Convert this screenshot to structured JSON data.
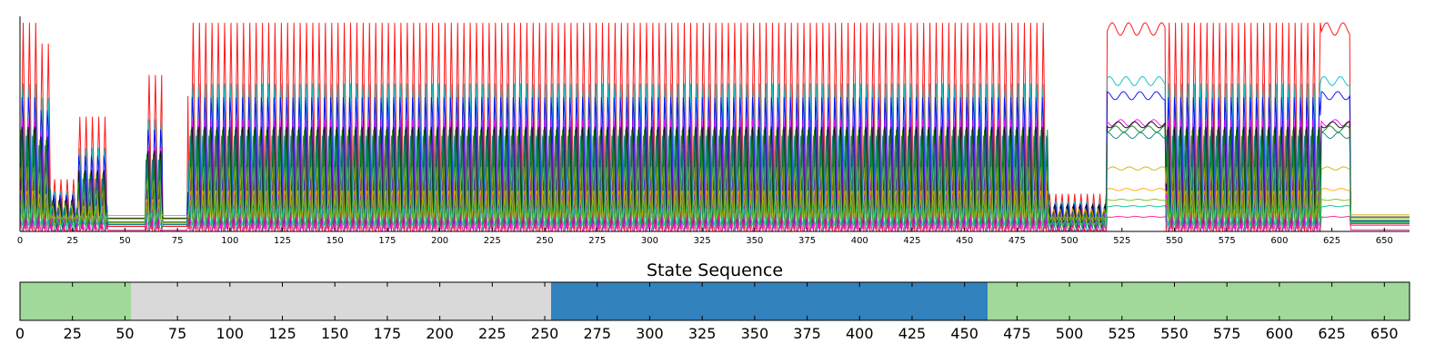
{
  "chart_data": [
    {
      "type": "line",
      "title": "",
      "xlabel": "",
      "ylabel": "",
      "xlim": [
        0,
        662
      ],
      "xticks": [
        0,
        25,
        50,
        75,
        100,
        125,
        150,
        175,
        200,
        225,
        250,
        275,
        300,
        325,
        350,
        375,
        400,
        425,
        450,
        475,
        500,
        525,
        550,
        575,
        600,
        625,
        650
      ],
      "ylim": [
        0,
        1
      ],
      "grid": false,
      "legend": "none",
      "series_colors": [
        "#ff0000",
        "#00bfbf",
        "#0000ff",
        "#ff00ff",
        "#000000",
        "#008000",
        "#c7b400",
        "#ffa500",
        "#008080",
        "#7fbf00",
        "#ff1493",
        "#00c08a"
      ],
      "series": [
        {
          "color": "#ff0000",
          "peak": 0.97,
          "base": 0.0
        },
        {
          "color": "#00bfbf",
          "peak": 0.72,
          "base": 0.02
        },
        {
          "color": "#0000ff",
          "peak": 0.65,
          "base": 0.02
        },
        {
          "color": "#ff00ff",
          "peak": 0.52,
          "base": 0.01
        },
        {
          "color": "#000000",
          "peak": 0.51,
          "base": 0.04
        },
        {
          "color": "#008000",
          "peak": 0.49,
          "base": 0.02
        },
        {
          "color": "#c7b400",
          "peak": 0.3,
          "base": 0.06
        },
        {
          "color": "#ffa500",
          "peak": 0.2,
          "base": 0.03
        },
        {
          "color": "#008080",
          "peak": 0.46,
          "base": 0.0
        },
        {
          "color": "#7fbf00",
          "peak": 0.15,
          "base": 0.05
        },
        {
          "color": "#ff1493",
          "peak": 0.07,
          "base": 0.0
        },
        {
          "color": "#00c08a",
          "peak": 0.12,
          "base": 0.03
        }
      ],
      "envelope": [
        {
          "x0": 0,
          "x1": 9,
          "level": 1.0,
          "mode": "spike"
        },
        {
          "x0": 9,
          "x1": 15,
          "level": 0.9,
          "mode": "spike"
        },
        {
          "x0": 15,
          "x1": 28,
          "level": 0.25,
          "mode": "spike"
        },
        {
          "x0": 28,
          "x1": 42,
          "level": 0.55,
          "mode": "spike"
        },
        {
          "x0": 42,
          "x1": 60,
          "level": 0.08,
          "mode": "flat"
        },
        {
          "x0": 60,
          "x1": 68,
          "level": 0.75,
          "mode": "spike"
        },
        {
          "x0": 68,
          "x1": 80,
          "level": 0.08,
          "mode": "flat"
        },
        {
          "x0": 80,
          "x1": 490,
          "level": 1.0,
          "mode": "spike"
        },
        {
          "x0": 490,
          "x1": 518,
          "level": 0.18,
          "mode": "spike"
        },
        {
          "x0": 518,
          "x1": 546,
          "level": 1.0,
          "mode": "plateau"
        },
        {
          "x0": 546,
          "x1": 620,
          "level": 1.0,
          "mode": "spike"
        },
        {
          "x0": 620,
          "x1": 634,
          "level": 1.0,
          "mode": "plateau"
        },
        {
          "x0": 634,
          "x1": 662,
          "level": 0.1,
          "mode": "flat"
        }
      ]
    },
    {
      "type": "bar",
      "title": "State Sequence",
      "xlim": [
        0,
        662
      ],
      "xticks": [
        0,
        25,
        50,
        75,
        100,
        125,
        150,
        175,
        200,
        225,
        250,
        275,
        300,
        325,
        350,
        375,
        400,
        425,
        450,
        475,
        500,
        525,
        550,
        575,
        600,
        625,
        650
      ],
      "segments": [
        {
          "start": 0,
          "end": 53,
          "color": "#a1d99b"
        },
        {
          "start": 53,
          "end": 253,
          "color": "#d9d9d9"
        },
        {
          "start": 253,
          "end": 461,
          "color": "#3182bd"
        },
        {
          "start": 461,
          "end": 662,
          "color": "#a1d99b"
        }
      ]
    }
  ]
}
